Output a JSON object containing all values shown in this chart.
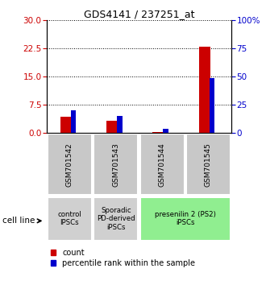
{
  "title": "GDS4141 / 237251_at",
  "samples": [
    "GSM701542",
    "GSM701543",
    "GSM701544",
    "GSM701545"
  ],
  "count_values": [
    4.2,
    3.2,
    0.2,
    22.8
  ],
  "percentile_values": [
    20.0,
    15.0,
    3.5,
    48.5
  ],
  "left_yticks": [
    0,
    7.5,
    15,
    22.5,
    30
  ],
  "right_yticks": [
    0,
    25,
    50,
    75,
    100
  ],
  "left_ylabel_color": "#cc0000",
  "right_ylabel_color": "#0000cc",
  "count_color": "#cc0000",
  "percentile_color": "#0000cc",
  "cell_line_labels": [
    "control\nIPSCs",
    "Sporadic\nPD-derived\niPSCs",
    "presenilin 2 (PS2)\niPSCs"
  ],
  "cell_line_spans": [
    [
      0,
      1
    ],
    [
      1,
      2
    ],
    [
      2,
      4
    ]
  ],
  "cell_line_colors": [
    "#d0d0d0",
    "#d0d0d0",
    "#90ee90"
  ],
  "sample_bg_color": "#c8c8c8",
  "legend_count": "count",
  "legend_percentile": "percentile rank within the sample",
  "cell_line_label": "cell line",
  "ylim_left": [
    0,
    30
  ],
  "ylim_right": [
    0,
    100
  ],
  "bg_color": "#ffffff"
}
